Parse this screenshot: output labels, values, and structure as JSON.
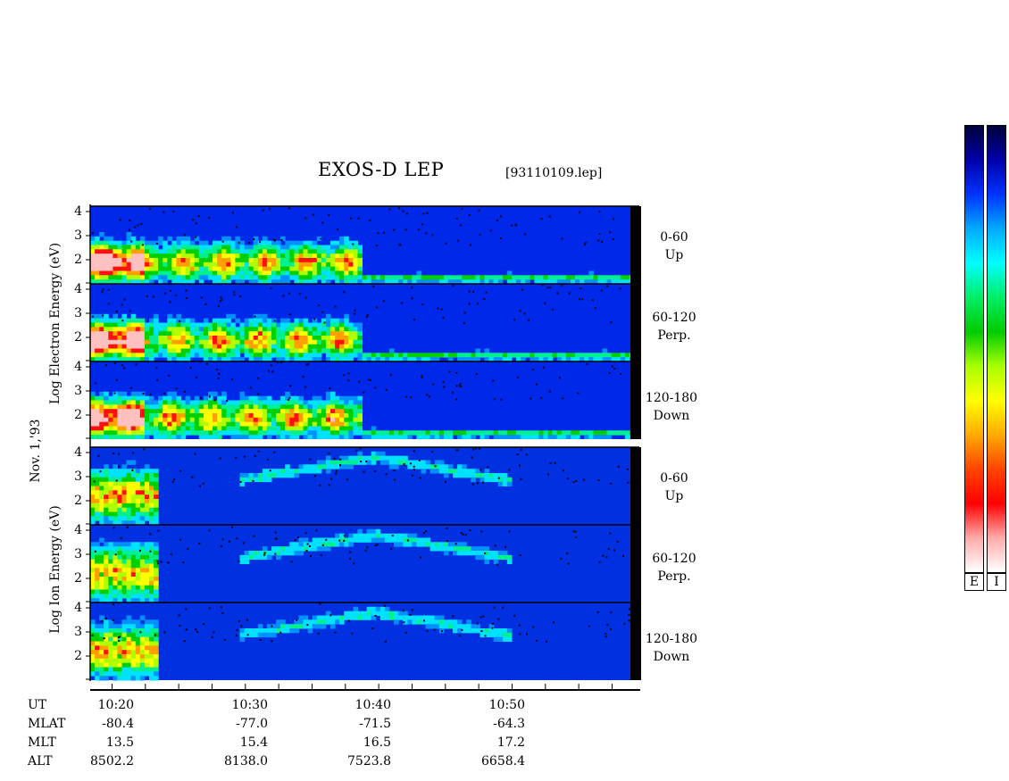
{
  "header": {
    "title": "EXOS-D LEP",
    "file": "[93110109.lep]"
  },
  "date_label": "Nov. 1,'93",
  "electron_axis_label": "Log Electron Energy (eV)",
  "ion_axis_label": "Log Ion Energy (eV)",
  "colorbar": {
    "electron_label": "E",
    "ion_label": "I"
  },
  "ephemeris": {
    "row_labels": [
      "UT",
      "MLAT",
      "MLT",
      "ALT"
    ],
    "columns": [
      {
        "ut": "10:20",
        "mlat": "-80.4",
        "mlt": "13.5",
        "alt": "8502.2"
      },
      {
        "ut": "10:30",
        "mlat": "-77.0",
        "mlt": "15.4",
        "alt": "8138.0"
      },
      {
        "ut": "10:40",
        "mlat": "-71.5",
        "mlt": "16.5",
        "alt": "7523.8"
      },
      {
        "ut": "10:50",
        "mlat": "-64.3",
        "mlt": "17.2",
        "alt": "6658.4"
      }
    ]
  },
  "chart_data": {
    "type": "heatmap",
    "title": "EXOS-D LEP",
    "subtitle": "[93110109.lep]",
    "x_range_minutes": [
      10.8,
      11.6
    ],
    "x_unit_label": "UT",
    "y_ticks": [
      "2",
      "3",
      "4"
    ],
    "y_range_log_eV": [
      1,
      4
    ],
    "panels": [
      {
        "species": "electron",
        "angle": "0-60",
        "direction": "Up"
      },
      {
        "species": "electron",
        "angle": "60-120",
        "direction": "Perp."
      },
      {
        "species": "electron",
        "angle": "120-180",
        "direction": "Down"
      },
      {
        "species": "ion",
        "angle": "0-60",
        "direction": "Up"
      },
      {
        "species": "ion",
        "angle": "60-120",
        "direction": "Perp."
      },
      {
        "species": "ion",
        "angle": "120-180",
        "direction": "Down"
      }
    ],
    "colormap": [
      "#ffffff",
      "#ffb0b0",
      "#ff0000",
      "#ff9900",
      "#ffff00",
      "#00dd00",
      "#00ffff",
      "#0066ff",
      "#0000cc",
      "#000066"
    ]
  }
}
